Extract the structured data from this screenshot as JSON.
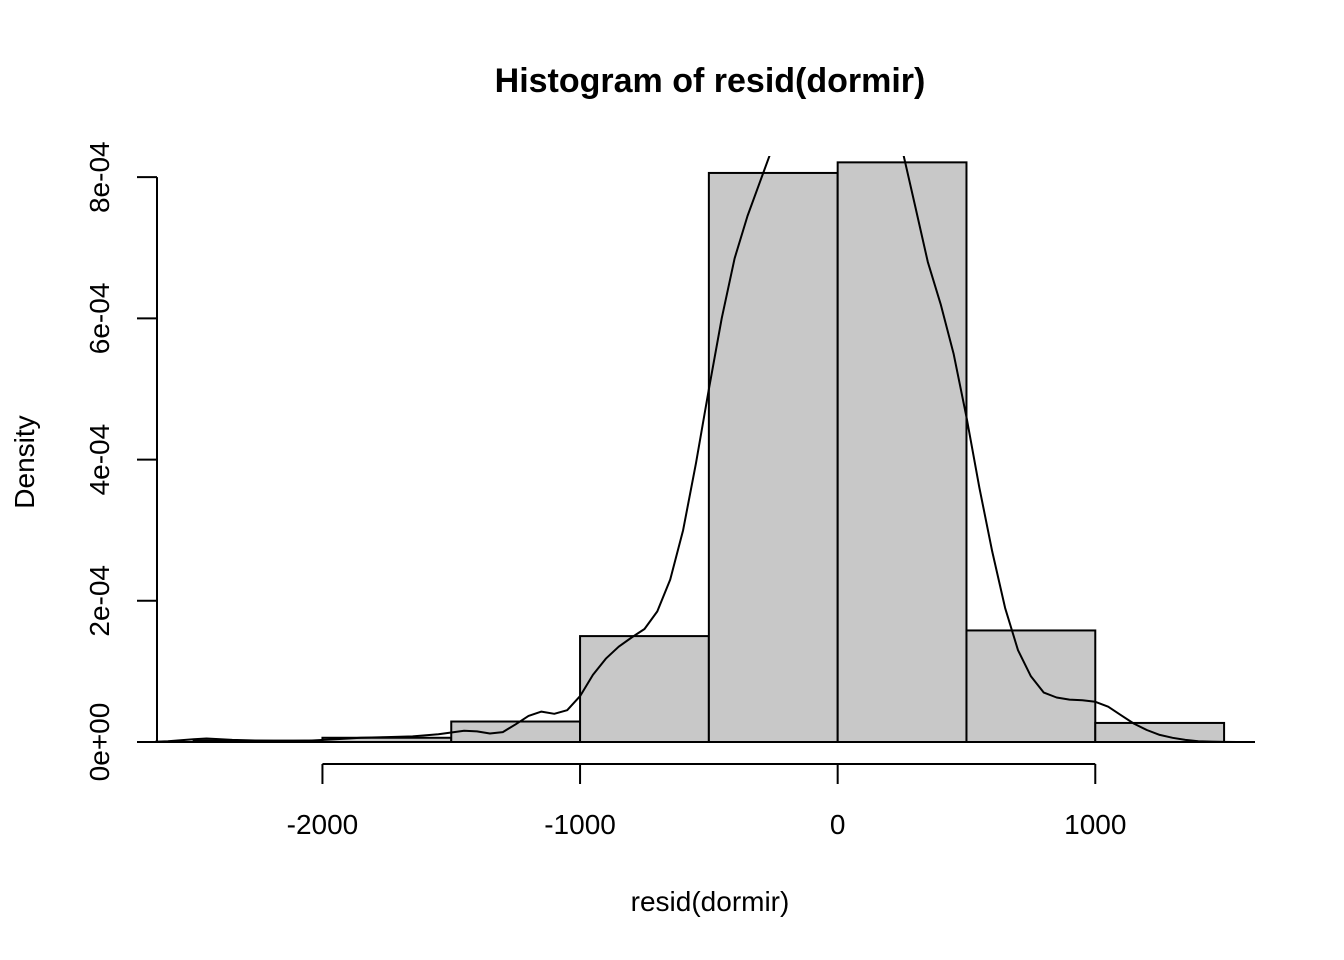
{
  "chart_data": {
    "type": "bar",
    "title": "Histogram of resid(dormir)",
    "xlabel": "resid(dormir)",
    "ylabel": "Density",
    "xlim": [
      -2650,
      1620
    ],
    "ylim": [
      0,
      0.00083
    ],
    "x_ticks": [
      -2000,
      -1000,
      0,
      1000
    ],
    "x_tick_labels": [
      "-2000",
      "-1000",
      "0",
      "1000"
    ],
    "y_ticks": [
      0,
      0.0002,
      0.0004,
      0.0006,
      0.0008
    ],
    "y_tick_labels": [
      "0e+00",
      "2e-04",
      "4e-04",
      "6e-04",
      "8e-04"
    ],
    "bins": [
      {
        "from": -2500,
        "to": -2000,
        "density": 2e-06
      },
      {
        "from": -2000,
        "to": -1500,
        "density": 6e-06
      },
      {
        "from": -1500,
        "to": -1000,
        "density": 2.9e-05
      },
      {
        "from": -1000,
        "to": -500,
        "density": 0.00015
      },
      {
        "from": -500,
        "to": 0,
        "density": 0.000806
      },
      {
        "from": 0,
        "to": 500,
        "density": 0.000821
      },
      {
        "from": 500,
        "to": 1000,
        "density": 0.000158
      },
      {
        "from": 1000,
        "to": 1500,
        "density": 2.7e-05
      }
    ],
    "density_curve": {
      "x": [
        -2670,
        -2600,
        -2500,
        -2450,
        -2350,
        -2250,
        -2150,
        -2050,
        -1950,
        -1850,
        -1750,
        -1650,
        -1550,
        -1450,
        -1400,
        -1350,
        -1300,
        -1250,
        -1200,
        -1150,
        -1100,
        -1050,
        -1000,
        -950,
        -900,
        -850,
        -800,
        -750,
        -700,
        -650,
        -600,
        -550,
        -500,
        -450,
        -400,
        -350,
        -300,
        -250,
        -220,
        225,
        250,
        300,
        350,
        400,
        450,
        500,
        550,
        600,
        650,
        700,
        750,
        800,
        850,
        900,
        950,
        1000,
        1050,
        1100,
        1150,
        1200,
        1250,
        1300,
        1350,
        1400,
        1450,
        1500,
        1550,
        1620
      ],
      "y": [
        0,
        1e-06,
        4e-06,
        5e-06,
        3e-06,
        2e-06,
        1e-06,
        2e-06,
        4e-06,
        6e-06,
        7e-06,
        8e-06,
        1.1e-05,
        1.6e-05,
        1.5e-05,
        1.2e-05,
        1.4e-05,
        2.5e-05,
        3.7e-05,
        4.3e-05,
        4e-05,
        4.5e-05,
        6.5e-05,
        9.5e-05,
        0.000118,
        0.000135,
        0.000148,
        0.00016,
        0.000185,
        0.00023,
        0.0003,
        0.000395,
        0.0005,
        0.0006,
        0.000685,
        0.000745,
        0.000795,
        0.000845,
        0.00088,
        0.00088,
        0.00084,
        0.00076,
        0.00068,
        0.00062,
        0.00055,
        0.00046,
        0.00036,
        0.00027,
        0.00019,
        0.00013,
        9.3e-05,
        7e-05,
        6.3e-05,
        6e-05,
        5.9e-05,
        5.7e-05,
        5e-05,
        3.8e-05,
        2.6e-05,
        1.7e-05,
        1e-05,
        6e-06,
        3e-06,
        1e-06,
        5e-07,
        2e-07,
        0,
        0
      ]
    },
    "grid": false,
    "legend": "none"
  },
  "colors": {
    "bar_fill": "#c8c8c8",
    "line": "#000000",
    "background": "#ffffff"
  }
}
